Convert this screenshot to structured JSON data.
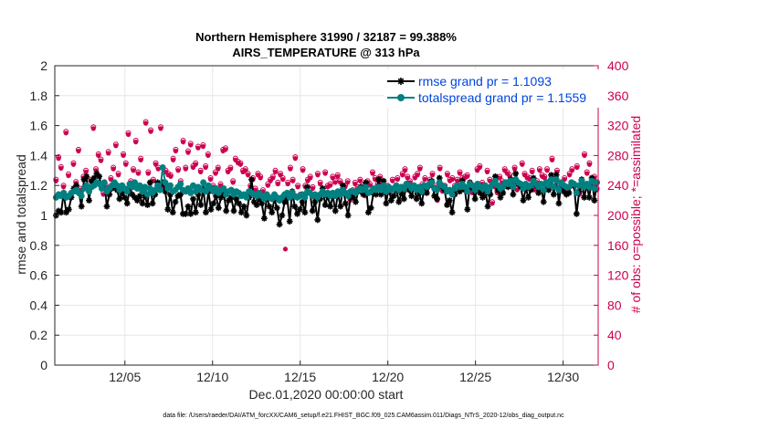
{
  "colors": {
    "rmse": "#000000",
    "spread": "#008080",
    "obs": "#cc0050",
    "legend_text": "#0044dd",
    "grid": "#e6e6e6",
    "axis": "#262626"
  },
  "chart_data": {
    "type": "line",
    "title_line1": "Northern Hemisphere 31990 / 32187 = 99.388%",
    "title_line2": "AIRS_TEMPERATURE @ 313 hPa",
    "xlabel": "Dec.01,2020 00:00:00 start",
    "ylabel": "rmse and totalspread",
    "ylabel_right": "# of obs: o=possible; *=assimilated",
    "footnote": "data file: /Users/raeder/DAI/ATM_forcXX/CAM6_setup/f.e21.FHIST_BGC.f09_025.CAM6assim.011/Diags_NTrS_2020-12/obs_diag_output.nc",
    "xlim": [
      "2020-12-01",
      "2021-01-01"
    ],
    "ylim": [
      0,
      2
    ],
    "ylim_right": [
      0,
      400
    ],
    "xticks": [
      "2020-12-05",
      "2020-12-10",
      "2020-12-15",
      "2020-12-20",
      "2020-12-25",
      "2020-12-30"
    ],
    "xtick_labels": [
      "12/05",
      "12/10",
      "12/15",
      "12/20",
      "12/25",
      "12/30"
    ],
    "yticks": [
      0,
      0.2,
      0.4,
      0.6,
      0.8,
      1,
      1.2,
      1.4,
      1.6,
      1.8,
      2
    ],
    "yticks_right": [
      0,
      40,
      80,
      120,
      160,
      200,
      240,
      280,
      320,
      360,
      400
    ],
    "grid": true,
    "legend_position": "top-right",
    "series": [
      {
        "name": "rmse grand pr = 1.1093",
        "axis": "left",
        "marker": "*",
        "values": [
          1.0,
          1.03,
          1.02,
          1.15,
          1.02,
          1.04,
          1.12,
          1.18,
          1.2,
          1.15,
          1.06,
          1.24,
          1.26,
          1.1,
          1.23,
          1.25,
          1.28,
          1.26,
          1.18,
          1.22,
          1.06,
          1.14,
          1.18,
          1.22,
          1.17,
          1.11,
          1.15,
          1.12,
          1.08,
          1.18,
          1.14,
          1.12,
          1.1,
          1.13,
          1.08,
          1.13,
          1.07,
          1.22,
          1.08,
          1.14,
          1.22,
          1.17,
          1.22,
          1.16,
          1.04,
          1.14,
          1.02,
          1.09,
          1.13,
          1.14,
          1.01,
          1.01,
          1.06,
          1.01,
          1.11,
          1.02,
          1.14,
          1.07,
          1.18,
          1.02,
          1.16,
          1.04,
          1.08,
          1.13,
          1.05,
          1.12,
          1.16,
          1.03,
          1.1,
          1.12,
          1.03,
          1.11,
          1.08,
          1.02,
          1.06,
          1.0,
          1.12,
          1.24,
          1.09,
          1.07,
          1.11,
          1.08,
          0.98,
          1.13,
          1.06,
          1.02,
          1.11,
          1.05,
          0.94,
          1.0,
          1.09,
          1.12,
          0.96,
          1.16,
          1.06,
          1.01,
          1.04,
          1.09,
          1.02,
          1.19,
          1.15,
          1.03,
          1.09,
          0.97,
          1.11,
          1.18,
          1.07,
          1.13,
          1.06,
          1.13,
          1.03,
          1.15,
          1.06,
          1.2,
          1.08,
          1.0,
          1.13,
          1.12,
          1.09,
          1.16,
          1.19,
          1.14,
          1.22,
          1.02,
          1.05,
          1.15,
          1.14,
          1.24,
          1.14,
          1.23,
          1.08,
          1.19,
          1.1,
          1.13,
          1.18,
          1.09,
          1.15,
          1.11,
          1.21,
          1.17,
          1.13,
          1.19,
          1.11,
          1.15,
          1.08,
          1.18,
          1.15,
          1.2,
          1.23,
          1.13,
          1.11,
          1.25,
          1.19,
          1.17,
          1.07,
          1.1,
          1.02,
          1.14,
          1.2,
          1.16,
          1.23,
          1.17,
          1.04,
          1.22,
          1.18,
          1.11,
          1.2,
          1.15,
          1.12,
          1.18,
          1.06,
          1.14,
          1.21,
          1.26,
          1.17,
          1.12,
          1.15,
          1.22,
          1.19,
          1.24,
          1.14,
          1.28,
          1.21,
          1.19,
          1.1,
          1.18,
          1.12,
          1.17,
          1.25,
          1.2,
          1.15,
          1.2,
          1.09,
          1.22,
          1.17,
          1.27,
          1.14,
          1.27,
          1.08,
          1.22,
          1.16,
          1.14,
          1.15,
          1.22,
          1.2,
          1.01,
          1.16,
          1.24,
          1.12,
          1.2,
          1.12,
          1.25,
          1.1,
          1.22
        ]
      },
      {
        "name": "totalspread grand pr = 1.1559",
        "axis": "left",
        "marker": "o",
        "values": [
          1.12,
          1.14,
          1.13,
          1.15,
          1.12,
          1.13,
          1.15,
          1.16,
          1.17,
          1.15,
          1.13,
          1.18,
          1.2,
          1.16,
          1.19,
          1.2,
          1.22,
          1.21,
          1.18,
          1.22,
          1.16,
          1.18,
          1.2,
          1.22,
          1.2,
          1.17,
          1.2,
          1.18,
          1.16,
          1.21,
          1.19,
          1.22,
          1.18,
          1.2,
          1.16,
          1.19,
          1.14,
          1.18,
          1.15,
          1.17,
          1.2,
          1.17,
          1.32,
          1.22,
          1.18,
          1.2,
          1.16,
          1.17,
          1.19,
          1.21,
          1.17,
          1.16,
          1.18,
          1.15,
          1.2,
          1.16,
          1.19,
          1.17,
          1.22,
          1.16,
          1.2,
          1.18,
          1.16,
          1.18,
          1.15,
          1.17,
          1.18,
          1.14,
          1.16,
          1.17,
          1.14,
          1.16,
          1.15,
          1.13,
          1.14,
          1.12,
          1.16,
          1.15,
          1.14,
          1.13,
          1.15,
          1.13,
          1.11,
          1.14,
          1.12,
          1.11,
          1.14,
          1.12,
          1.1,
          1.12,
          1.14,
          1.15,
          1.12,
          1.15,
          1.13,
          1.12,
          1.13,
          1.14,
          1.12,
          1.16,
          1.15,
          1.13,
          1.14,
          1.12,
          1.14,
          1.16,
          1.14,
          1.15,
          1.13,
          1.15,
          1.13,
          1.16,
          1.14,
          1.17,
          1.15,
          1.13,
          1.16,
          1.16,
          1.15,
          1.17,
          1.18,
          1.17,
          1.19,
          1.15,
          1.16,
          1.18,
          1.17,
          1.19,
          1.17,
          1.2,
          1.16,
          1.19,
          1.17,
          1.18,
          1.2,
          1.17,
          1.19,
          1.18,
          1.21,
          1.2,
          1.18,
          1.2,
          1.17,
          1.19,
          1.16,
          1.2,
          1.19,
          1.21,
          1.22,
          1.18,
          1.17,
          1.22,
          1.2,
          1.19,
          1.16,
          1.17,
          1.14,
          1.18,
          1.2,
          1.19,
          1.21,
          1.19,
          1.16,
          1.21,
          1.2,
          1.17,
          1.21,
          1.19,
          1.18,
          1.2,
          1.16,
          1.19,
          1.21,
          1.23,
          1.2,
          1.18,
          1.19,
          1.22,
          1.21,
          1.23,
          1.19,
          1.24,
          1.22,
          1.21,
          1.18,
          1.21,
          1.19,
          1.2,
          1.23,
          1.21,
          1.19,
          1.21,
          1.17,
          1.22,
          1.2,
          1.24,
          1.19,
          1.24,
          1.17,
          1.22,
          1.2,
          1.19,
          1.19,
          1.22,
          1.21,
          1.15,
          1.2,
          1.23,
          1.19,
          1.21,
          1.19,
          1.23,
          1.18,
          1.22
        ]
      },
      {
        "name": "possible",
        "axis": "right",
        "marker": "o",
        "values": [
          248,
          278,
          265,
          240,
          312,
          255,
          228,
          270,
          245,
          288,
          236,
          252,
          260,
          238,
          248,
          318,
          262,
          282,
          275,
          230,
          240,
          285,
          250,
          264,
          295,
          256,
          238,
          282,
          270,
          310,
          246,
          262,
          300,
          258,
          276,
          234,
          325,
          258,
          314,
          248,
          270,
          264,
          318,
          238,
          260,
          256,
          254,
          276,
          288,
          262,
          246,
          300,
          264,
          286,
          296,
          266,
          270,
          292,
          260,
          294,
          266,
          282,
          250,
          240,
          258,
          264,
          242,
          288,
          290,
          260,
          264,
          246,
          276,
          272,
          270,
          260,
          262,
          256,
          240,
          250,
          236,
          256,
          252,
          234,
          228,
          242,
          248,
          252,
          260,
          244,
          256,
          250,
          218,
          244,
          264,
          248,
          278,
          240,
          228,
          262,
          240,
          248,
          252,
          238,
          224,
          256,
          244,
          230,
          258,
          240,
          242,
          252,
          246,
          254,
          246,
          236,
          240,
          246,
          222,
          234,
          244,
          238,
          248,
          240,
          228,
          246,
          242,
          258,
          250,
          242,
          252,
          244,
          236,
          240,
          232,
          248,
          238,
          250,
          238,
          256,
          262,
          252,
          246,
          240,
          252,
          256,
          264,
          242,
          250,
          238,
          248,
          256,
          240,
          222,
          264,
          234,
          240,
          256,
          248,
          250,
          240,
          248,
          258,
          250,
          252,
          254,
          240,
          232,
          240,
          262,
          266,
          244,
          228,
          260,
          248,
          218,
          240,
          232,
          252,
          246,
          262,
          258,
          254,
          244,
          264,
          236,
          240,
          270,
          256,
          252,
          250,
          260,
          236,
          246,
          262,
          254,
          252,
          262,
          246,
          276,
          242,
          260,
          240,
          238,
          250,
          238,
          256,
          262,
          240,
          266,
          230,
          240,
          282,
          258,
          270,
          240,
          252,
          236
        ]
      },
      {
        "name": "assimilated",
        "axis": "right",
        "marker": "*",
        "values": [
          246,
          276,
          263,
          238,
          310,
          253,
          226,
          268,
          243,
          286,
          234,
          250,
          258,
          236,
          246,
          316,
          260,
          280,
          273,
          228,
          238,
          283,
          248,
          262,
          293,
          254,
          236,
          280,
          268,
          308,
          244,
          260,
          298,
          256,
          274,
          232,
          323,
          256,
          312,
          246,
          268,
          262,
          316,
          236,
          258,
          254,
          252,
          274,
          286,
          260,
          244,
          298,
          262,
          284,
          294,
          264,
          268,
          290,
          258,
          292,
          264,
          280,
          248,
          238,
          256,
          262,
          240,
          286,
          288,
          258,
          262,
          244,
          274,
          270,
          268,
          258,
          260,
          254,
          238,
          248,
          234,
          254,
          250,
          232,
          226,
          240,
          246,
          250,
          258,
          242,
          254,
          248,
          155,
          242,
          262,
          246,
          276,
          238,
          226,
          260,
          238,
          246,
          250,
          236,
          222,
          254,
          242,
          228,
          256,
          238,
          240,
          250,
          244,
          252,
          244,
          234,
          238,
          244,
          220,
          232,
          242,
          236,
          246,
          238,
          226,
          244,
          240,
          256,
          248,
          240,
          250,
          242,
          234,
          238,
          230,
          246,
          236,
          248,
          236,
          254,
          260,
          250,
          244,
          238,
          250,
          254,
          262,
          240,
          248,
          236,
          246,
          254,
          238,
          220,
          262,
          232,
          238,
          254,
          246,
          248,
          238,
          246,
          256,
          248,
          250,
          252,
          238,
          230,
          238,
          260,
          264,
          242,
          226,
          258,
          246,
          216,
          238,
          230,
          250,
          244,
          260,
          256,
          252,
          242,
          262,
          234,
          238,
          268,
          254,
          250,
          248,
          258,
          234,
          244,
          260,
          252,
          250,
          260,
          244,
          274,
          240,
          258,
          238,
          236,
          248,
          236,
          254,
          260,
          238,
          264,
          228,
          238,
          280,
          256,
          268,
          238,
          250,
          234
        ]
      }
    ]
  }
}
